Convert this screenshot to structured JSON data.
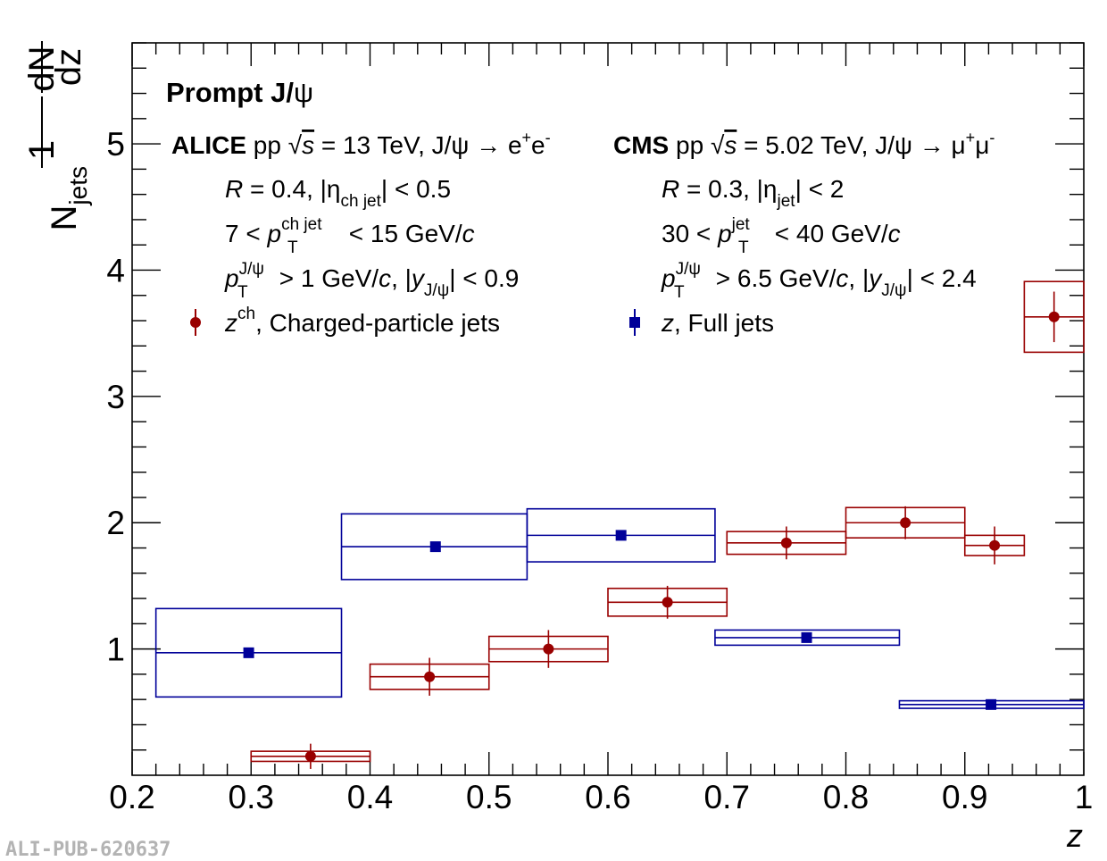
{
  "chart_data": {
    "type": "scatter",
    "xlabel": "z",
    "ylabel_parts": {
      "numerator": "1",
      "denominator": "N",
      "denominator_sub": "jets",
      "deriv_top": "dN",
      "deriv_bottom": "dz"
    },
    "xlim": [
      0.2,
      1.0
    ],
    "ylim": [
      0.0,
      5.8
    ],
    "x_ticks": [
      "0.2",
      "0.3",
      "0.4",
      "0.5",
      "0.6",
      "0.7",
      "0.8",
      "0.9",
      "1"
    ],
    "y_ticks": [
      "1",
      "2",
      "3",
      "4",
      "5"
    ],
    "grid": false,
    "legend_position": "top",
    "series": [
      {
        "name": "z^ch, Charged-particle jets",
        "experiment": "ALICE",
        "color": "#990000",
        "marker": "circle",
        "points": [
          {
            "x": 0.35,
            "xlo": 0.3,
            "xhi": 0.4,
            "y": 0.15,
            "stat": 0.1,
            "sys": 0.04
          },
          {
            "x": 0.45,
            "xlo": 0.4,
            "xhi": 0.5,
            "y": 0.78,
            "stat": 0.15,
            "sys": 0.1
          },
          {
            "x": 0.55,
            "xlo": 0.5,
            "xhi": 0.6,
            "y": 1.0,
            "stat": 0.15,
            "sys": 0.1
          },
          {
            "x": 0.65,
            "xlo": 0.6,
            "xhi": 0.7,
            "y": 1.37,
            "stat": 0.13,
            "sys": 0.11
          },
          {
            "x": 0.75,
            "xlo": 0.7,
            "xhi": 0.8,
            "y": 1.84,
            "stat": 0.13,
            "sys": 0.09
          },
          {
            "x": 0.85,
            "xlo": 0.8,
            "xhi": 0.9,
            "y": 2.0,
            "stat": 0.13,
            "sys": 0.12
          },
          {
            "x": 0.925,
            "xlo": 0.9,
            "xhi": 0.95,
            "y": 1.82,
            "stat": 0.15,
            "sys": 0.08
          },
          {
            "x": 0.975,
            "xlo": 0.95,
            "xhi": 1.0,
            "y": 3.63,
            "stat": 0.2,
            "sys": 0.28
          }
        ]
      },
      {
        "name": "z, Full jets",
        "experiment": "CMS",
        "color": "#000099",
        "marker": "square",
        "points": [
          {
            "x": 0.298,
            "xlo": 0.22,
            "xhi": 0.376,
            "y": 0.97,
            "stat": 0.03,
            "sys": 0.35
          },
          {
            "x": 0.455,
            "xlo": 0.376,
            "xhi": 0.532,
            "y": 1.81,
            "stat": 0.03,
            "sys": 0.26
          },
          {
            "x": 0.611,
            "xlo": 0.532,
            "xhi": 0.69,
            "y": 1.9,
            "stat": 0.03,
            "sys": 0.21
          },
          {
            "x": 0.767,
            "xlo": 0.69,
            "xhi": 0.845,
            "y": 1.09,
            "stat": 0.02,
            "sys": 0.06
          },
          {
            "x": 0.922,
            "xlo": 0.845,
            "xhi": 1.0,
            "y": 0.56,
            "stat": 0.01,
            "sys": 0.03
          }
        ]
      }
    ]
  },
  "annotations": {
    "title_main": "Prompt J/",
    "title_psi": "ψ",
    "alice": {
      "experiment": "ALICE",
      "system": " pp ",
      "sqrt": "√",
      "s": "s",
      "energy": " = 13 TeV, J/ψ → e",
      "plus": "+",
      "e2": "e",
      "minus": "-",
      "line1_R": "R",
      "line1_rest": " = 0.4, |η",
      "line1_sub": "ch jet",
      "line1_end": "| < 0.5",
      "line2_pre": "7 < ",
      "line2_p": "p",
      "line2_sup": "ch jet",
      "line2_sub": "T",
      "line2_end": " < 15 GeV/",
      "line2_c": "c",
      "line3_p": "p",
      "line3_sup": "J/ψ",
      "line3_sub": "T",
      "line3_mid": " > 1 GeV/",
      "line3_c": "c",
      "line3_comma": ", |",
      "line3_y": "y",
      "line3_ysub": "J/ψ",
      "line3_end": "| < 0.9"
    },
    "cms": {
      "experiment": "CMS",
      "system": " pp ",
      "sqrt": "√",
      "s": "s",
      "energy": " = 5.02 TeV, J/ψ → μ",
      "plus": "+",
      "mu2": "μ",
      "minus": "-",
      "line1_R": "R",
      "line1_rest": " = 0.3, |η",
      "line1_sub": "jet",
      "line1_end": "| < 2",
      "line2_pre": "30 < ",
      "line2_p": "p",
      "line2_sup": "jet",
      "line2_sub": "T",
      "line2_end": " < 40 GeV/",
      "line2_c": "c",
      "line3_p": "p",
      "line3_sup": "J/ψ",
      "line3_sub": "T",
      "line3_mid": " > 6.5 GeV/",
      "line3_c": "c",
      "line3_comma": ", |",
      "line3_y": "y",
      "line3_ysub": "J/ψ",
      "line3_end": "| < 2.4"
    },
    "legend_alice_z": "z",
    "legend_alice_sup": "ch",
    "legend_alice_text": ", Charged-particle jets",
    "legend_cms_z": "z",
    "legend_cms_text": ", Full jets",
    "footer_id": "ALI-PUB-620637"
  }
}
